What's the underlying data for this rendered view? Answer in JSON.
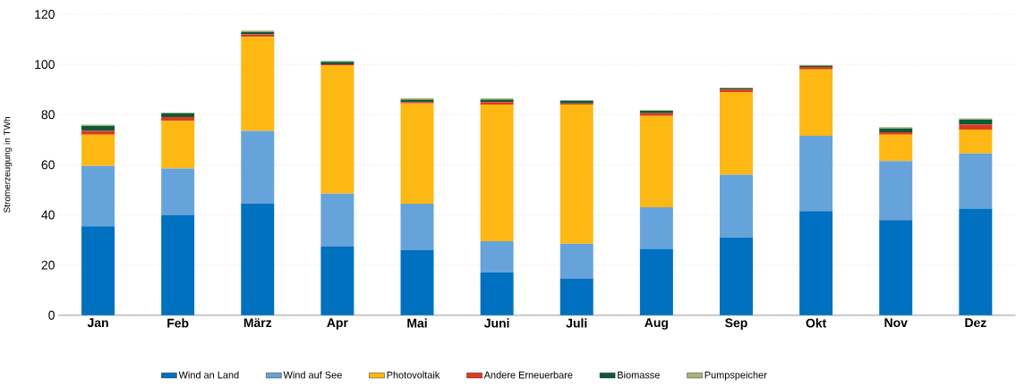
{
  "chart_data": {
    "type": "bar",
    "stacked": true,
    "ylabel": "Stromerzeugung in TWh",
    "categories": [
      "Jan",
      "Feb",
      "März",
      "Apr",
      "Mai",
      "Juni",
      "Juli",
      "Aug",
      "Sep",
      "Okt",
      "Nov",
      "Dez"
    ],
    "series": [
      {
        "name": "Wind an Land",
        "color": "#0070c0",
        "values": [
          35.5,
          40,
          44.5,
          27.5,
          26,
          17,
          14.5,
          26.5,
          31,
          41.5,
          38,
          42.5
        ]
      },
      {
        "name": "Wind auf See",
        "color": "#67a3db",
        "values": [
          24,
          18.5,
          29,
          21,
          18.5,
          12.5,
          14,
          16.5,
          25,
          30,
          23.5,
          22
        ]
      },
      {
        "name": "Photovoltaik",
        "color": "#fdb813",
        "values": [
          12.5,
          19,
          37.5,
          51,
          40,
          54.5,
          55.5,
          36.5,
          33,
          26.5,
          10.5,
          9.5
        ]
      },
      {
        "name": "Andere Erneuerbare",
        "color": "#e03a1e",
        "values": [
          1.5,
          1.5,
          1,
          0.5,
          0.5,
          1,
          0.5,
          1,
          1,
          1,
          1,
          2
        ]
      },
      {
        "name": "Biomasse",
        "color": "#0d5a3a",
        "values": [
          2,
          1.5,
          1,
          1,
          1,
          1,
          1,
          1,
          0.5,
          0.5,
          1.5,
          2
        ]
      },
      {
        "name": "Pumpspeicher",
        "color": "#a9b47a",
        "values": [
          0.5,
          0.3,
          0.5,
          0.5,
          0.5,
          0.5,
          0.3,
          0.3,
          0.3,
          0.3,
          0.5,
          0.5
        ]
      }
    ],
    "ylim": [
      0,
      120
    ],
    "yticks": [
      0,
      20,
      40,
      60,
      80,
      100,
      120
    ],
    "grid": "y",
    "legend": "bottom"
  }
}
